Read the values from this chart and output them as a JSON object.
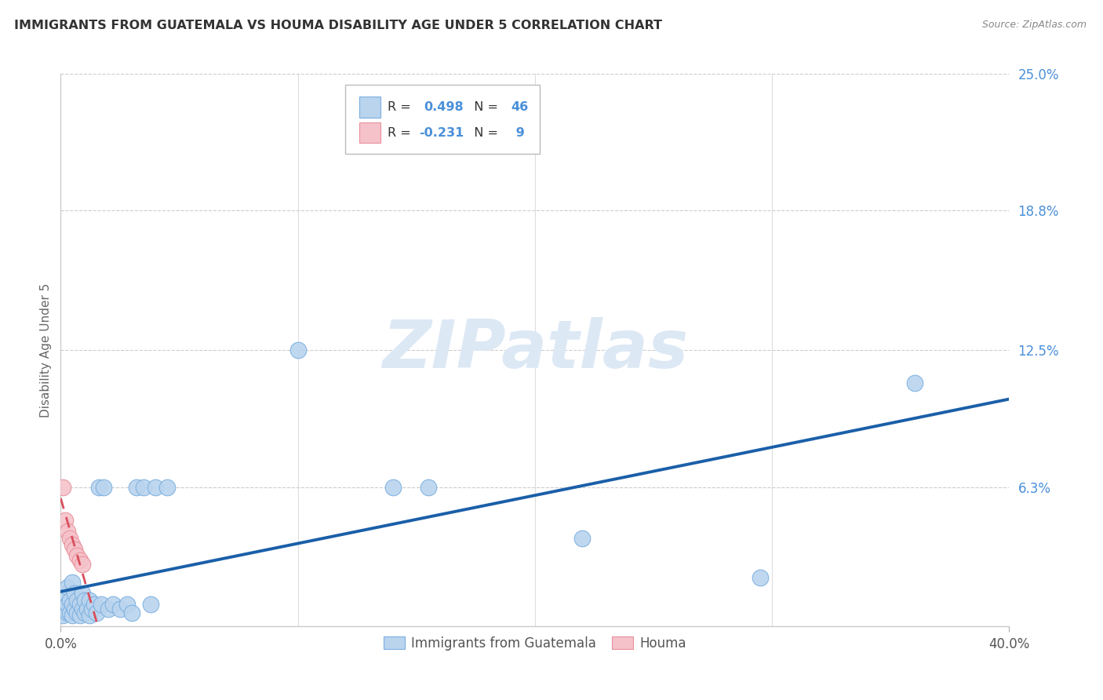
{
  "title": "IMMIGRANTS FROM GUATEMALA VS HOUMA DISABILITY AGE UNDER 5 CORRELATION CHART",
  "source": "Source: ZipAtlas.com",
  "xlabel": "Immigrants from Guatemala",
  "ylabel": "Disability Age Under 5",
  "xlim": [
    0.0,
    0.4
  ],
  "ylim": [
    0.0,
    0.25
  ],
  "ytick_vals": [
    0.0,
    0.063,
    0.125,
    0.188,
    0.25
  ],
  "ytick_labels": [
    "",
    "6.3%",
    "12.5%",
    "18.8%",
    "25.0%"
  ],
  "xtick_vals": [
    0.0,
    0.4
  ],
  "xtick_labels": [
    "0.0%",
    "40.0%"
  ],
  "blue_color": "#bad4ee",
  "blue_edge": "#7aafe0",
  "pink_color": "#f5c2ca",
  "pink_edge": "#e8909a",
  "trend_blue": "#1a5fa8",
  "trend_pink": "#d94f5c",
  "watermark_color": "#dde8f5",
  "blue_points_x": [
    0.001,
    0.002,
    0.002,
    0.003,
    0.003,
    0.003,
    0.004,
    0.004,
    0.005,
    0.005,
    0.005,
    0.006,
    0.006,
    0.007,
    0.007,
    0.008,
    0.008,
    0.009,
    0.009,
    0.01,
    0.01,
    0.011,
    0.012,
    0.012,
    0.013,
    0.014,
    0.015,
    0.016,
    0.017,
    0.018,
    0.02,
    0.022,
    0.025,
    0.028,
    0.03,
    0.032,
    0.035,
    0.038,
    0.04,
    0.045,
    0.1,
    0.14,
    0.155,
    0.22,
    0.295,
    0.36
  ],
  "blue_points_y": [
    0.005,
    0.008,
    0.015,
    0.006,
    0.01,
    0.018,
    0.006,
    0.012,
    0.005,
    0.01,
    0.02,
    0.008,
    0.015,
    0.006,
    0.012,
    0.005,
    0.01,
    0.008,
    0.015,
    0.006,
    0.012,
    0.008,
    0.005,
    0.012,
    0.008,
    0.01,
    0.006,
    0.063,
    0.01,
    0.063,
    0.008,
    0.01,
    0.008,
    0.01,
    0.006,
    0.063,
    0.063,
    0.01,
    0.063,
    0.063,
    0.125,
    0.063,
    0.063,
    0.04,
    0.022,
    0.11
  ],
  "pink_points_x": [
    0.001,
    0.002,
    0.003,
    0.004,
    0.005,
    0.006,
    0.007,
    0.008,
    0.009
  ],
  "pink_points_y": [
    0.063,
    0.048,
    0.043,
    0.04,
    0.037,
    0.035,
    0.032,
    0.03,
    0.028
  ],
  "pink_outlier_x": [
    0.001
  ],
  "pink_outlier_y": [
    0.06
  ]
}
